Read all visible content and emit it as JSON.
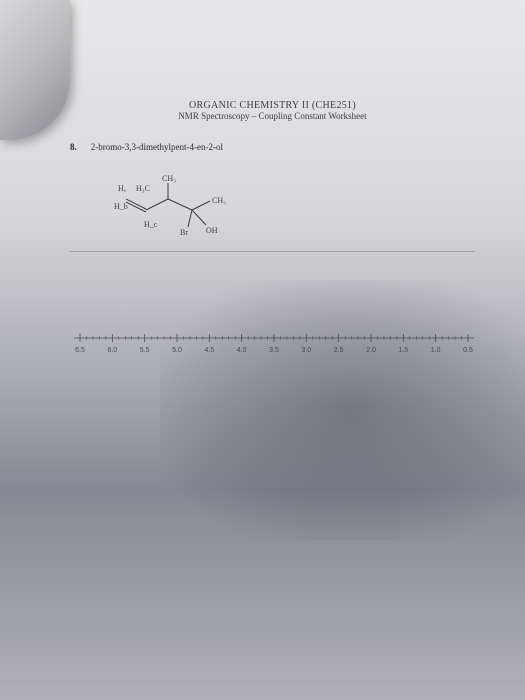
{
  "header": {
    "title": "ORGANIC CHEMISTRY II (CHE251)",
    "subtitle": "NMR Spectroscopy – Coupling Constant Worksheet"
  },
  "question": {
    "number": "8.",
    "name": "2-bromo-3,3-dimethylpent-4-en-2-ol"
  },
  "structure": {
    "labels": {
      "Ha": "Hₐ",
      "H3C": "H₃C",
      "CH3_top": "CH₃",
      "CH3_side": "CH₃",
      "Hb": "H_b",
      "Hc": "H_c",
      "Br": "Br",
      "OH": "OH"
    },
    "stroke": "#3a3a44",
    "text_color": "#3a3a44",
    "fontsize": 8
  },
  "axis": {
    "ticks": [
      "6.5",
      "6.0",
      "5.5",
      "5.0",
      "4.5",
      "4.0",
      "3.5",
      "3.0",
      "2.5",
      "2.0",
      "1.5",
      "1.0",
      "0.5"
    ],
    "tick_count": 13,
    "minor_per_major": 4,
    "line_color": "#4a4a54",
    "label_color": "#4a4a54",
    "label_fontsize": 7
  },
  "colors": {
    "paper_top": "#e8e8ea",
    "paper_mid": "#a8a8b0",
    "background": "#3a3a42",
    "rule": "#9a9aa2"
  }
}
